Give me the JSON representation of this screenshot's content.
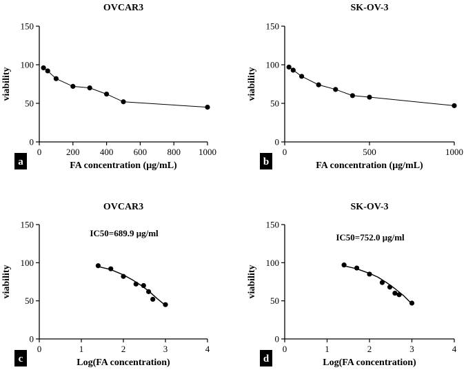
{
  "chart_data": [
    {
      "id": "a",
      "type": "line",
      "title": "OVCAR3",
      "panel_label": "a",
      "xlabel": "FA concentration (μg/mL)",
      "ylabel": "viability",
      "xlim": [
        0,
        1000
      ],
      "ylim": [
        0,
        150
      ],
      "xticks": [
        0,
        200,
        400,
        600,
        800,
        1000
      ],
      "yticks": [
        0,
        50,
        100,
        150
      ],
      "annotation": "",
      "series": [
        {
          "name": "OVCAR3",
          "x": [
            25,
            50,
            100,
            200,
            300,
            400,
            500,
            1000
          ],
          "y": [
            96,
            92,
            82,
            72,
            70,
            62,
            52,
            45
          ]
        }
      ]
    },
    {
      "id": "b",
      "type": "line",
      "title": "SK-OV-3",
      "panel_label": "b",
      "xlabel": "FA concentration (μg/mL)",
      "ylabel": "viability",
      "xlim": [
        0,
        1000
      ],
      "ylim": [
        0,
        150
      ],
      "xticks": [
        0,
        500,
        1000
      ],
      "yticks": [
        0,
        50,
        100,
        150
      ],
      "annotation": "",
      "series": [
        {
          "name": "SK-OV-3",
          "x": [
            25,
            50,
            100,
            200,
            300,
            400,
            500,
            1000
          ],
          "y": [
            97,
            93,
            85,
            74,
            68,
            60,
            58,
            47
          ]
        }
      ]
    },
    {
      "id": "c",
      "type": "scatter",
      "title": "OVCAR3",
      "panel_label": "c",
      "xlabel": "Log(FA concentration)",
      "ylabel": "viability",
      "xlim": [
        0,
        4
      ],
      "ylim": [
        0,
        150
      ],
      "xticks": [
        0,
        1,
        2,
        3,
        4
      ],
      "yticks": [
        0,
        50,
        100,
        150
      ],
      "annotation": "IC50=689.9 μg/ml",
      "series": [
        {
          "name": "OVCAR3",
          "x": [
            1.4,
            1.7,
            2.0,
            2.3,
            2.48,
            2.6,
            2.7,
            3.0
          ],
          "y": [
            96,
            92,
            82,
            72,
            70,
            62,
            52,
            45
          ]
        }
      ],
      "fit": {
        "x": [
          1.4,
          1.7,
          2.0,
          2.2,
          2.4,
          2.6,
          2.8,
          3.0
        ],
        "y": [
          95,
          91,
          84,
          78,
          71,
          63,
          53,
          44
        ]
      }
    },
    {
      "id": "d",
      "type": "scatter",
      "title": "SK-OV-3",
      "panel_label": "d",
      "xlabel": "Log(FA concentration)",
      "ylabel": "viability",
      "xlim": [
        0,
        4
      ],
      "ylim": [
        0,
        150
      ],
      "xticks": [
        0,
        1,
        2,
        3,
        4
      ],
      "yticks": [
        0,
        50,
        100,
        150
      ],
      "annotation": "IC50=752.0 μg/ml",
      "series": [
        {
          "name": "SK-OV-3",
          "x": [
            1.4,
            1.7,
            2.0,
            2.3,
            2.48,
            2.6,
            2.7,
            3.0
          ],
          "y": [
            97,
            93,
            85,
            74,
            68,
            60,
            58,
            47
          ]
        }
      ],
      "fit": {
        "x": [
          1.4,
          1.7,
          2.0,
          2.2,
          2.4,
          2.6,
          2.8,
          3.0
        ],
        "y": [
          96,
          92,
          86,
          81,
          74,
          66,
          57,
          46
        ]
      }
    }
  ]
}
